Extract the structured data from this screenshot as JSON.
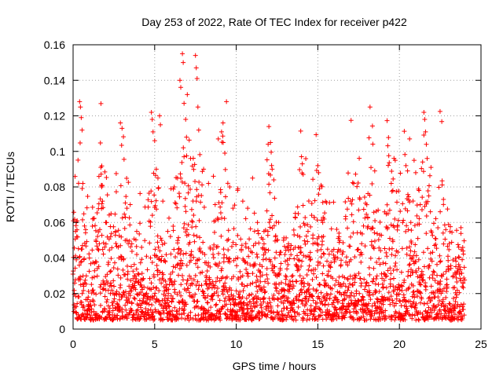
{
  "chart_data": {
    "type": "scatter",
    "title": "Day 253 of 2022, Rate Of TEC Index for receiver p422",
    "xlabel": "GPS time / hours",
    "ylabel": "ROTI / TECUs",
    "xlim": [
      0,
      25
    ],
    "ylim": [
      0,
      0.16
    ],
    "x_ticks": [
      "0",
      "5",
      "10",
      "15",
      "20",
      "25"
    ],
    "y_ticks": [
      "0",
      "0.02",
      "0.04",
      "0.06",
      "0.08",
      "0.1",
      "0.12",
      "0.14",
      "0.16"
    ],
    "x_tick_values": [
      0,
      5,
      10,
      15,
      20,
      25
    ],
    "y_tick_values": [
      0,
      0.02,
      0.04,
      0.06,
      0.08,
      0.1,
      0.12,
      0.14,
      0.16
    ],
    "grid": true,
    "marker": "+",
    "color": "#ff0000",
    "x_data_range": [
      0,
      24
    ],
    "series": [
      {
        "points": [
          [
            0.1,
            0.012
          ],
          [
            0.15,
            0.055
          ],
          [
            0.25,
            0.061
          ],
          [
            0.4,
            0.128
          ],
          [
            0.45,
            0.125
          ],
          [
            0.5,
            0.119
          ],
          [
            0.55,
            0.112
          ],
          [
            0.6,
            0.082
          ],
          [
            0.5,
            0.045
          ],
          [
            0.7,
            0.058
          ],
          [
            1.0,
            0.04
          ],
          [
            1.2,
            0.062
          ],
          [
            1.4,
            0.05
          ],
          [
            1.7,
            0.091
          ],
          [
            1.75,
            0.08
          ],
          [
            1.8,
            0.072
          ],
          [
            2.0,
            0.06
          ],
          [
            2.3,
            0.052
          ],
          [
            2.6,
            0.055
          ],
          [
            2.9,
            0.116
          ],
          [
            3.0,
            0.113
          ],
          [
            3.2,
            0.071
          ],
          [
            3.3,
            0.068
          ],
          [
            3.6,
            0.048
          ],
          [
            3.9,
            0.055
          ],
          [
            4.2,
            0.046
          ],
          [
            4.5,
            0.041
          ],
          [
            4.8,
            0.122
          ],
          [
            4.85,
            0.118
          ],
          [
            4.9,
            0.111
          ],
          [
            5.0,
            0.106
          ],
          [
            5.1,
            0.09
          ],
          [
            5.2,
            0.085
          ],
          [
            5.3,
            0.12
          ],
          [
            5.35,
            0.115
          ],
          [
            5.5,
            0.072
          ],
          [
            5.8,
            0.055
          ],
          [
            6.0,
            0.079
          ],
          [
            6.2,
            0.08
          ],
          [
            6.4,
            0.085
          ],
          [
            6.55,
            0.14
          ],
          [
            6.6,
            0.136
          ],
          [
            6.7,
            0.155
          ],
          [
            6.75,
            0.15
          ],
          [
            6.8,
            0.127
          ],
          [
            6.9,
            0.118
          ],
          [
            6.95,
            0.108
          ],
          [
            7.0,
            0.132
          ],
          [
            7.2,
            0.096
          ],
          [
            7.5,
            0.154
          ],
          [
            7.55,
            0.147
          ],
          [
            7.6,
            0.141
          ],
          [
            7.65,
            0.125
          ],
          [
            7.7,
            0.112
          ],
          [
            8.0,
            0.09
          ],
          [
            8.3,
            0.082
          ],
          [
            8.6,
            0.086
          ],
          [
            8.9,
            0.107
          ],
          [
            9.1,
            0.111
          ],
          [
            9.2,
            0.105
          ],
          [
            9.3,
            0.099
          ],
          [
            9.4,
            0.128
          ],
          [
            9.6,
            0.08
          ],
          [
            9.8,
            0.068
          ],
          [
            10.1,
            0.079
          ],
          [
            10.4,
            0.072
          ],
          [
            10.7,
            0.068
          ],
          [
            11.0,
            0.085
          ],
          [
            11.3,
            0.06
          ],
          [
            11.7,
            0.055
          ],
          [
            12.0,
            0.114
          ],
          [
            12.1,
            0.105
          ],
          [
            12.2,
            0.09
          ],
          [
            12.3,
            0.084
          ],
          [
            12.6,
            0.06
          ],
          [
            12.9,
            0.05
          ],
          [
            13.2,
            0.048
          ],
          [
            13.5,
            0.045
          ],
          [
            13.8,
            0.065
          ],
          [
            14.0,
            0.097
          ],
          [
            14.05,
            0.093
          ],
          [
            14.1,
            0.087
          ],
          [
            14.4,
            0.055
          ],
          [
            14.7,
            0.048
          ],
          [
            15.0,
            0.092
          ],
          [
            15.05,
            0.088
          ],
          [
            15.1,
            0.079
          ],
          [
            15.3,
            0.06
          ],
          [
            15.6,
            0.045
          ],
          [
            16.0,
            0.04
          ],
          [
            16.3,
            0.052
          ],
          [
            16.7,
            0.062
          ],
          [
            17.0,
            0.072
          ],
          [
            17.2,
            0.082
          ],
          [
            17.5,
            0.067
          ],
          [
            17.8,
            0.058
          ],
          [
            18.0,
            0.07
          ],
          [
            18.2,
            0.125
          ],
          [
            18.5,
            0.061
          ],
          [
            18.8,
            0.053
          ],
          [
            19.2,
            0.065
          ],
          [
            19.5,
            0.082
          ],
          [
            19.6,
            0.078
          ],
          [
            19.9,
            0.058
          ],
          [
            20.2,
            0.06
          ],
          [
            20.4,
            0.092
          ],
          [
            20.5,
            0.089
          ],
          [
            20.7,
            0.06
          ],
          [
            20.9,
            0.095
          ],
          [
            21.0,
            0.088
          ],
          [
            21.2,
            0.078
          ],
          [
            21.5,
            0.122
          ],
          [
            21.55,
            0.118
          ],
          [
            21.6,
            0.111
          ],
          [
            21.65,
            0.104
          ],
          [
            21.7,
            0.096
          ],
          [
            21.9,
            0.066
          ],
          [
            22.2,
            0.051
          ],
          [
            22.5,
            0.066
          ],
          [
            22.7,
            0.073
          ],
          [
            23.0,
            0.034
          ],
          [
            23.3,
            0.03
          ],
          [
            23.7,
            0.035
          ],
          [
            23.9,
            0.044
          ]
        ]
      }
    ]
  }
}
